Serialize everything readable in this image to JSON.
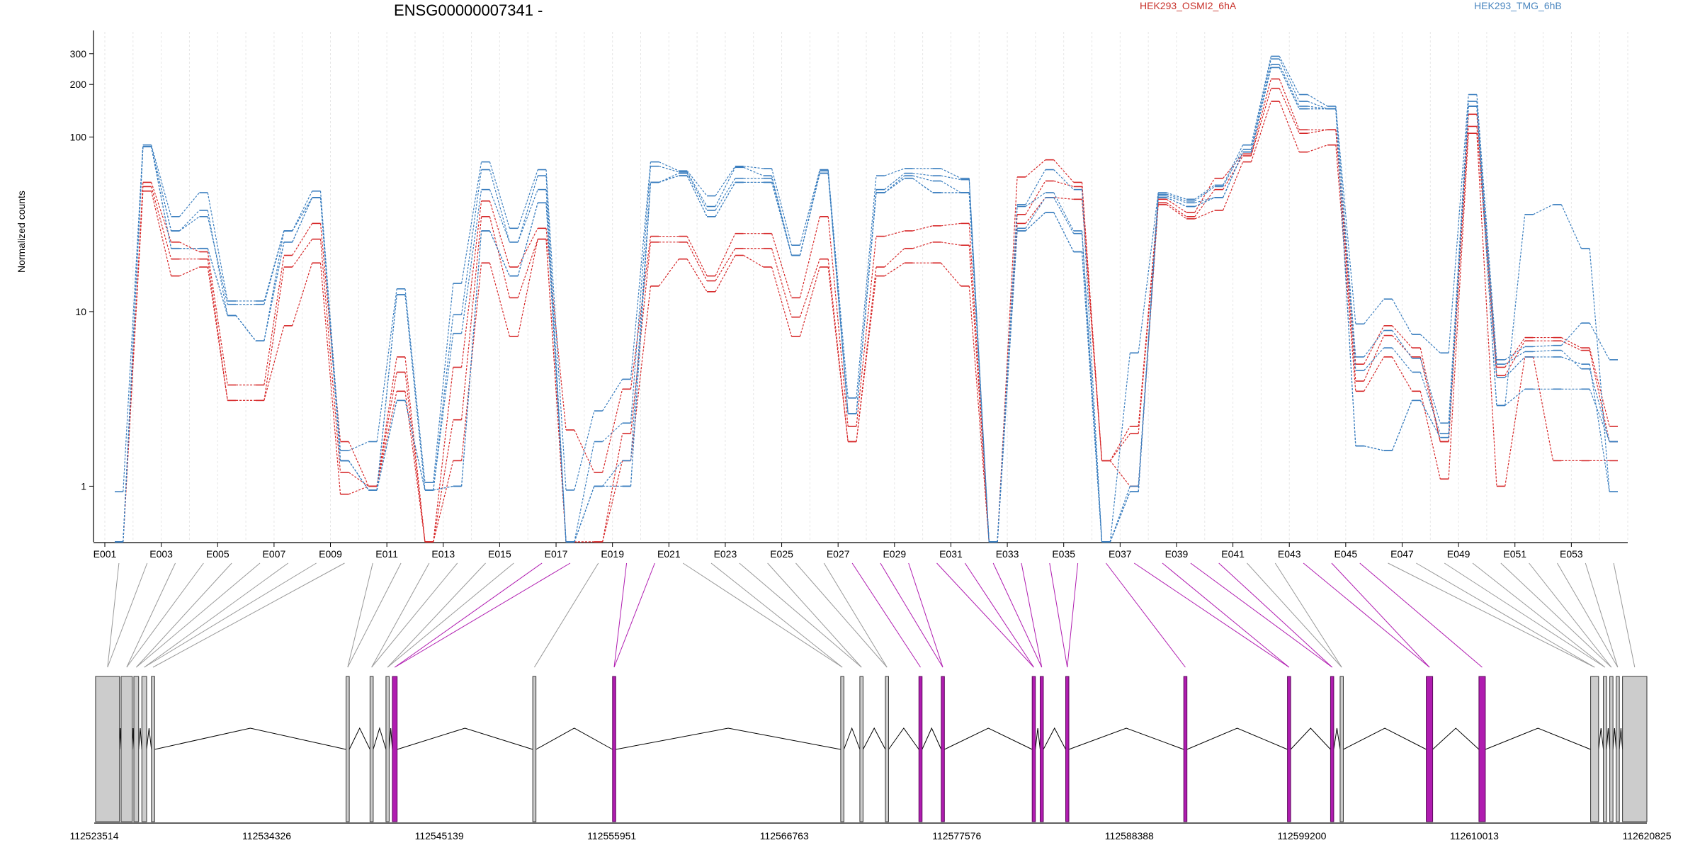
{
  "chart_data": {
    "type": "line",
    "title": "ENSG00000007341 -",
    "ylabel": "Normalized counts",
    "yscale": "log",
    "ylim": [
      0.48,
      400
    ],
    "yticks": [
      1,
      10,
      100,
      200,
      300
    ],
    "ytick_labels": [
      "1",
      "10",
      "100",
      "200",
      "300"
    ],
    "legend": [
      {
        "label": "HEK293_OSMI2_6hA",
        "color": "#d62728"
      },
      {
        "label": "HEK293_TMG_6hB",
        "color": "#3a7ebf"
      }
    ],
    "categories": [
      "E001",
      "E002",
      "E003",
      "E004",
      "E005",
      "E006",
      "E007",
      "E008",
      "E009",
      "E010",
      "E011",
      "E012",
      "E013",
      "E014",
      "E015",
      "E016",
      "E017",
      "E018",
      "E019",
      "E020",
      "E021",
      "E022",
      "E023",
      "E024",
      "E025",
      "E026",
      "E027",
      "E028",
      "E029",
      "E030",
      "E031",
      "E032",
      "E033",
      "E034",
      "E035",
      "E036",
      "E037",
      "E038",
      "E039",
      "E040",
      "E041",
      "E042",
      "E043",
      "E044",
      "E045",
      "E046",
      "E047",
      "E048",
      "E049",
      "E050",
      "E051",
      "E052",
      "E053",
      "E054"
    ],
    "xtick_labels": [
      "E001",
      "E003",
      "E005",
      "E007",
      "E009",
      "E011",
      "E013",
      "E015",
      "E017",
      "E019",
      "E021",
      "E023",
      "E025",
      "E027",
      "E029",
      "E031",
      "E033",
      "E035",
      "E037",
      "E039",
      "E041",
      "E043",
      "E045",
      "E047",
      "E049",
      "E051",
      "E053"
    ],
    "series": [
      {
        "group": "HEK293_OSMI2_6hA",
        "color": "#d62728",
        "values": [
          0.48,
          55,
          25,
          22,
          3.8,
          3.8,
          21,
          32,
          1.8,
          1.0,
          5.5,
          0.48,
          4.8,
          43,
          18,
          30,
          2.1,
          1.2,
          3.6,
          27,
          27,
          16,
          28,
          28,
          12,
          35,
          2.2,
          27,
          29,
          31,
          32,
          0.48,
          59,
          74,
          55,
          1.4,
          2.2,
          44,
          37,
          58,
          80,
          215,
          110,
          110,
          5.0,
          8.3,
          6.2,
          1.8,
          135,
          4.8,
          7.1,
          7.1,
          6.2,
          2.2
        ]
      },
      {
        "group": "HEK293_OSMI2_6hA",
        "color": "#d62728",
        "values": [
          0.48,
          52,
          20,
          20,
          3.1,
          3.1,
          18,
          26,
          1.2,
          1.0,
          4.5,
          0.48,
          2.4,
          35,
          12,
          26,
          0.48,
          0.48,
          2.0,
          25,
          25,
          15,
          23,
          23,
          9.3,
          20,
          1.8,
          18,
          23,
          25,
          24,
          0.48,
          36,
          56,
          52,
          1.4,
          2.0,
          42,
          35,
          50,
          78,
          190,
          105,
          110,
          4.0,
          7.3,
          5.5,
          1.8,
          115,
          4.3,
          6.8,
          6.8,
          6.0,
          1.8
        ]
      },
      {
        "group": "HEK293_OSMI2_6hA",
        "color": "#d62728",
        "values": [
          0.48,
          49,
          16,
          18,
          3.1,
          3.1,
          8.3,
          19,
          0.9,
          1.0,
          3.5,
          0.48,
          1.4,
          19,
          7.2,
          26,
          0.48,
          0.48,
          1.4,
          14,
          20,
          13,
          21,
          18,
          7.2,
          18,
          1.8,
          16,
          19,
          19,
          14,
          0.48,
          32,
          45,
          44,
          1.4,
          1.0,
          41,
          34,
          38,
          72,
          160,
          82,
          90,
          3.5,
          5.5,
          3.5,
          1.1,
          105,
          1.0,
          5.5,
          1.4,
          1.4,
          1.4
        ]
      },
      {
        "group": "HEK293_TMG_6hB",
        "color": "#3a7ebf",
        "values": [
          0.93,
          90,
          35,
          48,
          11.5,
          11.5,
          29,
          49,
          1.6,
          1.8,
          13.5,
          1.05,
          14.5,
          72,
          30,
          65,
          0.95,
          2.7,
          4.1,
          72,
          64,
          46,
          68,
          66,
          24,
          65,
          3.2,
          60,
          66,
          66,
          58,
          0.48,
          41,
          65,
          50,
          0.48,
          5.8,
          48,
          44,
          53,
          90,
          290,
          175,
          150,
          8.5,
          11.8,
          7.4,
          5.8,
          175,
          5.3,
          6.3,
          6.4,
          8.6,
          5.3
        ]
      },
      {
        "group": "HEK293_TMG_6hB",
        "color": "#3a7ebf",
        "values": [
          0.48,
          88,
          29,
          38,
          9.5,
          6.8,
          29,
          45,
          1.4,
          0.95,
          12.5,
          0.95,
          9.6,
          65,
          25,
          60,
          0.48,
          1.8,
          2.3,
          68,
          63,
          40,
          67,
          60,
          21,
          64,
          2.6,
          50,
          62,
          60,
          57,
          0.48,
          40,
          48,
          29,
          0.48,
          1.0,
          47,
          43,
          52,
          85,
          280,
          160,
          145,
          5.5,
          7.8,
          5.4,
          2.3,
          160,
          5.0,
          5.9,
          6.0,
          4.7,
          1.8
        ]
      },
      {
        "group": "HEK293_TMG_6hB",
        "color": "#3a7ebf",
        "values": [
          0.48,
          88,
          29,
          35,
          11,
          11,
          29,
          45,
          1.4,
          0.95,
          12.5,
          0.95,
          7.5,
          50,
          25,
          50,
          0.48,
          1.0,
          1.4,
          55,
          62,
          38,
          58,
          58,
          21,
          62,
          2.6,
          48,
          60,
          56,
          48,
          0.48,
          30,
          45,
          28,
          0.48,
          0.93,
          46,
          42,
          45,
          82,
          260,
          150,
          145,
          4.6,
          6.2,
          4.5,
          2.0,
          150,
          4.2,
          5.5,
          5.5,
          5.0,
          0.93
        ]
      },
      {
        "group": "HEK293_TMG_6hB",
        "color": "#3a7ebf",
        "values": [
          0.48,
          88,
          23,
          23,
          9.5,
          6.8,
          25,
          45,
          1.4,
          0.95,
          3.1,
          0.95,
          1.0,
          29,
          16,
          42,
          0.48,
          1.0,
          1.0,
          55,
          60,
          35,
          55,
          55,
          21,
          62,
          2.6,
          48,
          58,
          48,
          48,
          0.48,
          29,
          37,
          22,
          0.48,
          0.93,
          45,
          40,
          45,
          82,
          250,
          145,
          145,
          1.7,
          1.6,
          3.1,
          1.9,
          150,
          2.9,
          3.6,
          3.6,
          3.6,
          1.8
        ]
      },
      {
        "group": "HEK293_TMG_6hB",
        "color": "#3a7ebf",
        "values": [
          0.48,
          88,
          23,
          23,
          9.5,
          6.8,
          25,
          45,
          1.4,
          0.95,
          3.1,
          0.95,
          1.0,
          29,
          16,
          42,
          0.48,
          1.0,
          1.0,
          55,
          60,
          35,
          55,
          55,
          21,
          62,
          2.6,
          48,
          58,
          48,
          48,
          0.48,
          29,
          37,
          22,
          0.48,
          0.93,
          45,
          40,
          45,
          82,
          250,
          145,
          145,
          1.7,
          1.6,
          3.1,
          1.9,
          150,
          2.9,
          36,
          41,
          23,
          0.93
        ]
      }
    ],
    "genome": {
      "coord_min": 112523514,
      "coord_max": 112620825,
      "tick_labels": [
        "112523514",
        "112534326",
        "112545139",
        "112555951",
        "112566763",
        "112577576",
        "112588388",
        "112599200",
        "112610013",
        "112620825"
      ],
      "highlight_color": "#b01cb0",
      "exons": [
        {
          "start": 112523600,
          "end": 112525100,
          "hl": false
        },
        {
          "start": 112525200,
          "end": 112525900,
          "hl": false
        },
        {
          "start": 112526000,
          "end": 112526300,
          "hl": false
        },
        {
          "start": 112526500,
          "end": 112526800,
          "hl": false
        },
        {
          "start": 112527100,
          "end": 112527300,
          "hl": false
        },
        {
          "start": 112539300,
          "end": 112539500,
          "hl": false
        },
        {
          "start": 112540800,
          "end": 112541000,
          "hl": false
        },
        {
          "start": 112541800,
          "end": 112542000,
          "hl": false
        },
        {
          "start": 112542200,
          "end": 112542500,
          "hl": true
        },
        {
          "start": 112551000,
          "end": 112551200,
          "hl": false
        },
        {
          "start": 112556000,
          "end": 112556200,
          "hl": true
        },
        {
          "start": 112570300,
          "end": 112570500,
          "hl": false
        },
        {
          "start": 112571500,
          "end": 112571700,
          "hl": false
        },
        {
          "start": 112573100,
          "end": 112573300,
          "hl": false
        },
        {
          "start": 112575200,
          "end": 112575400,
          "hl": true
        },
        {
          "start": 112576600,
          "end": 112576800,
          "hl": true
        },
        {
          "start": 112582300,
          "end": 112582500,
          "hl": true
        },
        {
          "start": 112582800,
          "end": 112583000,
          "hl": true
        },
        {
          "start": 112584400,
          "end": 112584600,
          "hl": true
        },
        {
          "start": 112591800,
          "end": 112592000,
          "hl": true
        },
        {
          "start": 112598300,
          "end": 112598500,
          "hl": true
        },
        {
          "start": 112601000,
          "end": 112601200,
          "hl": true
        },
        {
          "start": 112601600,
          "end": 112601800,
          "hl": false
        },
        {
          "start": 112607000,
          "end": 112607400,
          "hl": true
        },
        {
          "start": 112610300,
          "end": 112610700,
          "hl": true
        },
        {
          "start": 112617300,
          "end": 112617800,
          "hl": false
        },
        {
          "start": 112618100,
          "end": 112618300,
          "hl": false
        },
        {
          "start": 112618500,
          "end": 112618700,
          "hl": false
        },
        {
          "start": 112618900,
          "end": 112619100,
          "hl": false
        },
        {
          "start": 112619300,
          "end": 112620825,
          "hl": false
        }
      ]
    }
  }
}
